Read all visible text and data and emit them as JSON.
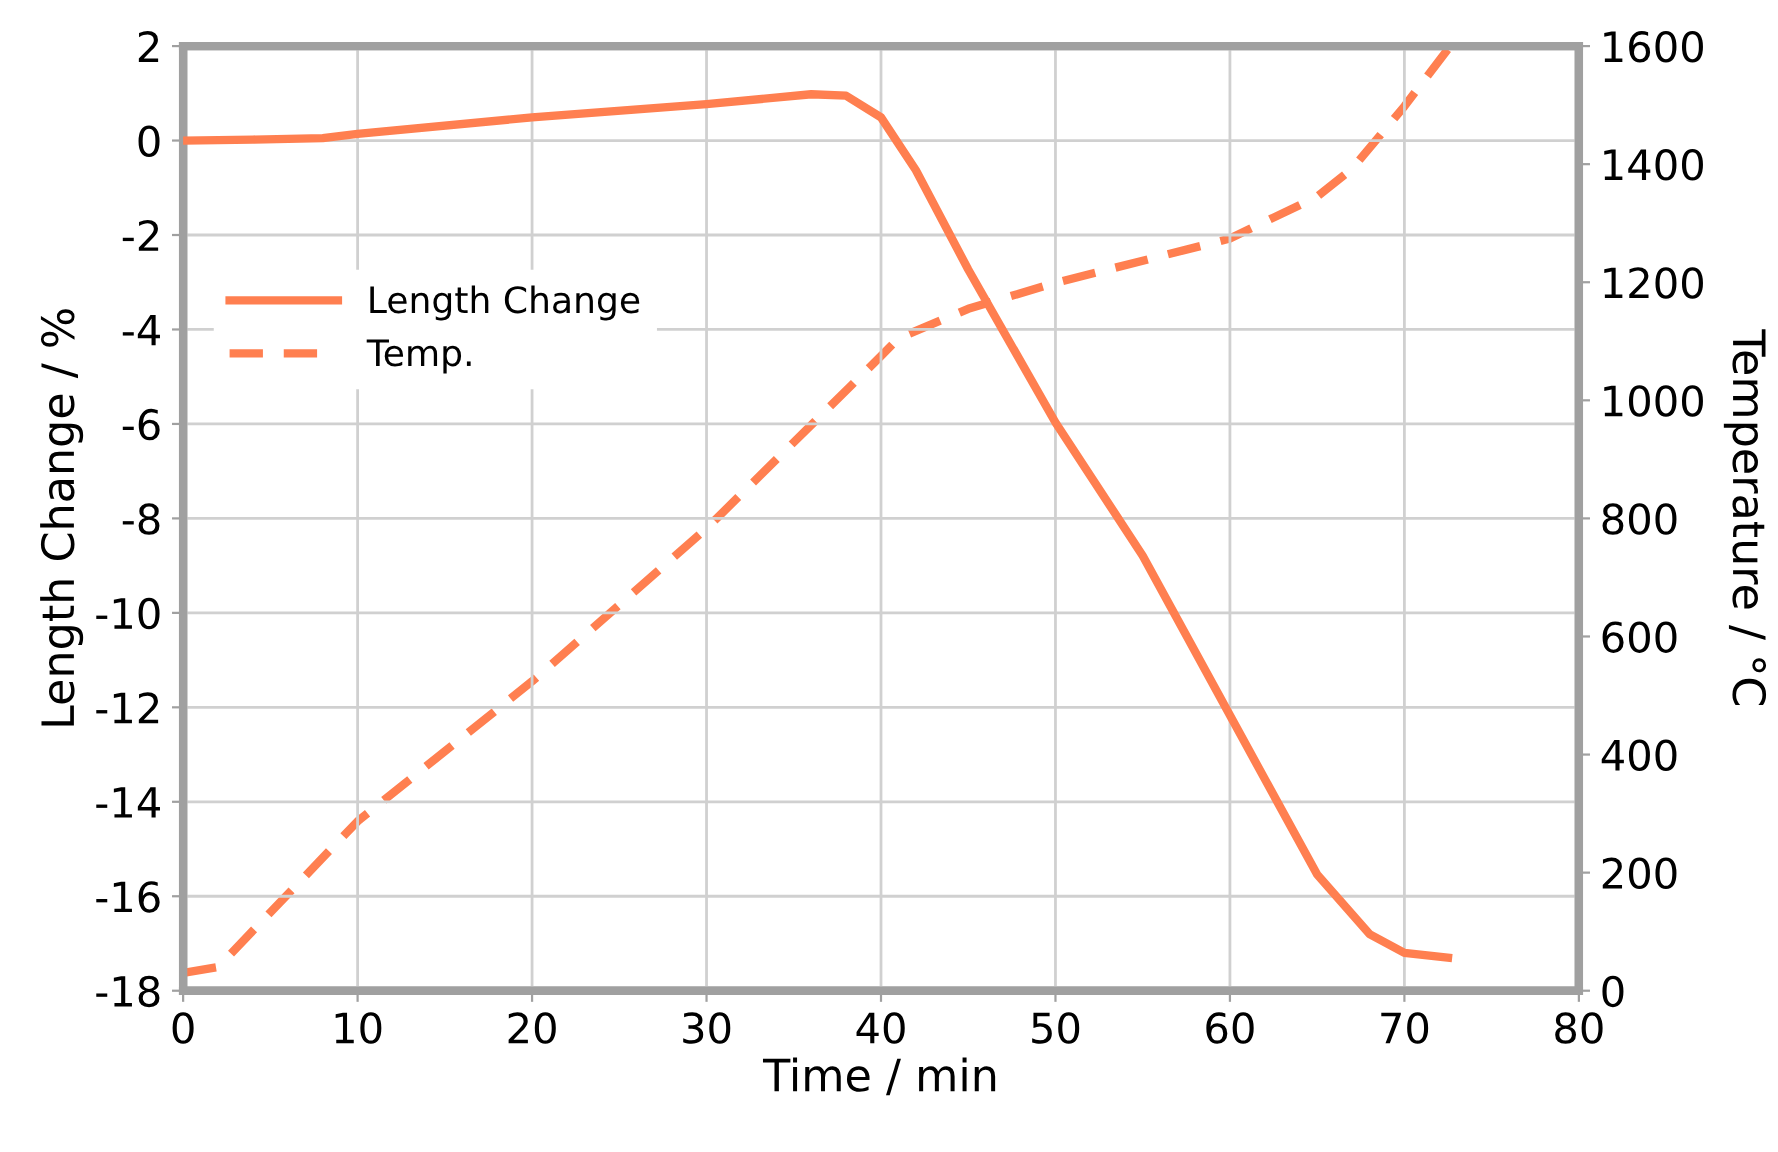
{
  "chart_data": {
    "type": "line",
    "xlabel": "Time / min",
    "ylabel": "Length Change / %",
    "y2label": "Temperature / °C",
    "xlim": [
      0,
      80
    ],
    "xticks": [
      0,
      10,
      20,
      30,
      40,
      50,
      60,
      70,
      80
    ],
    "ylim": [
      -18,
      2
    ],
    "yticks": [
      -18,
      -16,
      -14,
      -12,
      -10,
      -8,
      -6,
      -4,
      -2,
      0,
      2
    ],
    "y2lim": [
      0,
      1600
    ],
    "y2ticks": [
      0,
      200,
      400,
      600,
      800,
      1000,
      1200,
      1400,
      1600
    ],
    "grid": true,
    "legend": "left",
    "marker": "none",
    "series": [
      {
        "name": "Length Change",
        "color": "#ff7f50",
        "line_style": "solid",
        "x": [
          0,
          4,
          8,
          10,
          20,
          30,
          36,
          38,
          40,
          42,
          45,
          50,
          55,
          60,
          65,
          68,
          70,
          72.5
        ],
        "values": [
          0,
          0.02,
          0.05,
          0.14,
          0.49,
          0.77,
          0.98,
          0.95,
          0.49,
          -0.63,
          -2.73,
          -5.97,
          -8.79,
          -12.17,
          -15.54,
          -16.8,
          -17.2,
          -17.3
        ]
      },
      {
        "name": "Temp.",
        "color": "#ff7f50",
        "line_style": "dashed",
        "axis": "y2",
        "x": [
          0,
          2,
          10,
          20,
          30,
          40,
          41,
          45,
          50,
          60,
          65,
          67,
          70,
          72.5
        ],
        "values": [
          30,
          40,
          287,
          524,
          783,
          1075,
          1105,
          1155,
          1199,
          1274,
          1345,
          1392,
          1498,
          1595
        ]
      }
    ]
  }
}
